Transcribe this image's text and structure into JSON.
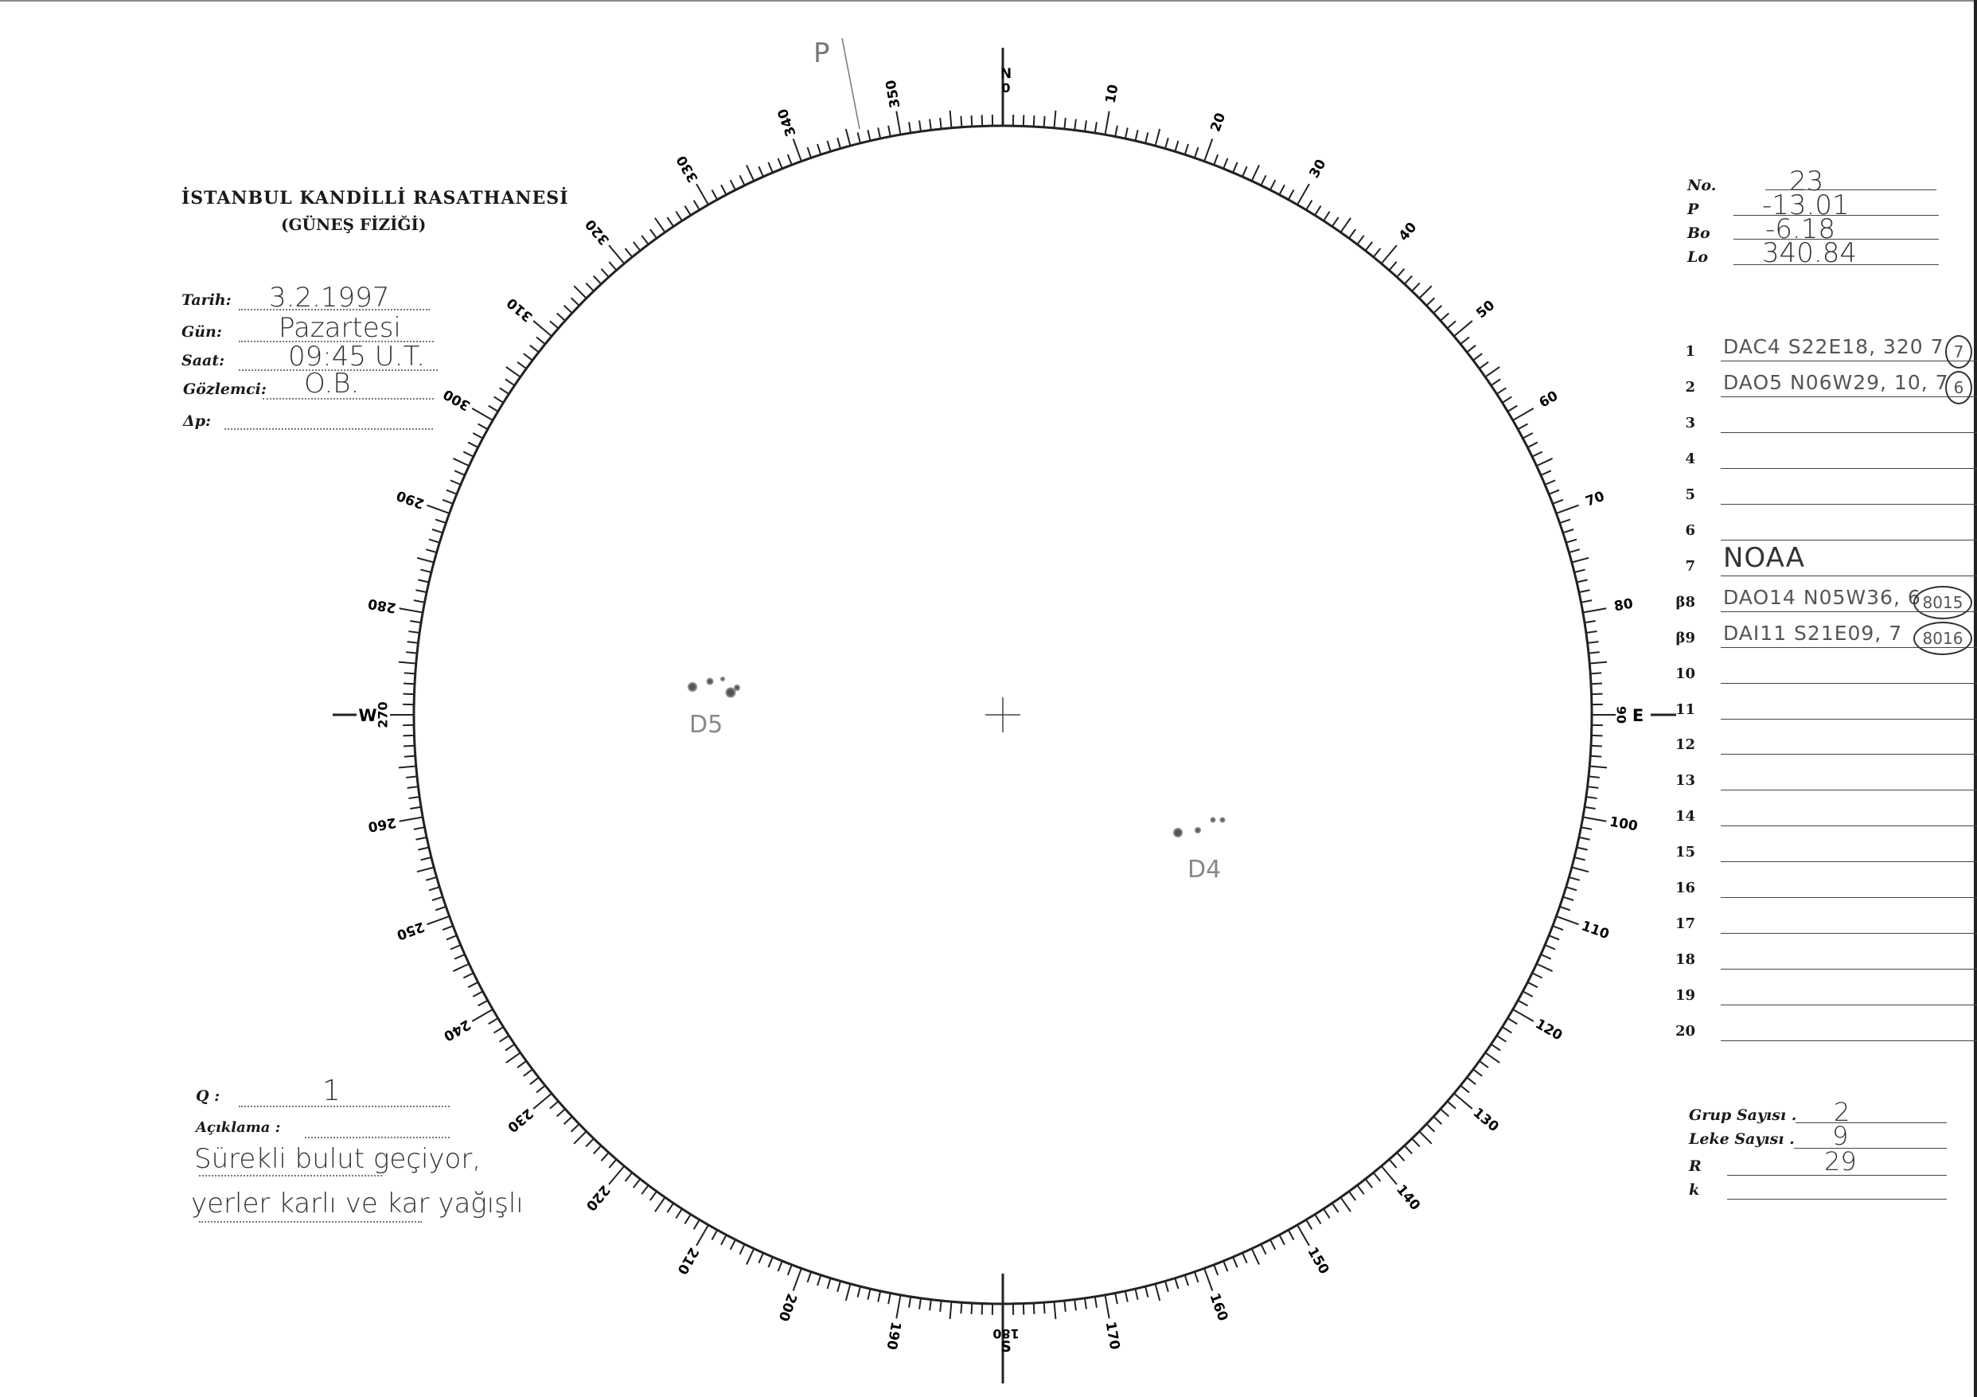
{
  "header": {
    "institution": "İSTANBUL KANDİLLİ RASATHANESİ",
    "department": "(GÜNEŞ FİZİĞİ)"
  },
  "observation": {
    "tarih_label": "Tarih:",
    "tarih": "3.2.1997",
    "gun_label": "Gün:",
    "gun": "Pazartesi",
    "saat_label": "Saat:",
    "saat": "09:45 U.T.",
    "gozlemci_label": "Gözlemci:",
    "gozlemci": "O.B.",
    "dp_label": "Δp:",
    "dp": ""
  },
  "quality": {
    "q_label": "Q :",
    "q": "1",
    "aciklama_label": "Açıklama :",
    "aciklama_lines": [
      "Sürekli bulut geçiyor,",
      "yerler karlı ve kar yağışlı"
    ]
  },
  "ephemeris": {
    "no_label": "No.",
    "no": "23",
    "p_label": "P",
    "p": "-13.01",
    "bo_label": "Bo",
    "bo": "-6.18",
    "lo_label": "Lo",
    "lo": "340.84"
  },
  "groups": [
    {
      "num": "1",
      "text": "DAC4 S22E18, 320 7",
      "circled": "7"
    },
    {
      "num": "2",
      "text": "DAO5 N06W29, 10, 7",
      "circled": "6"
    },
    {
      "num": "3",
      "text": "",
      "circled": ""
    },
    {
      "num": "4",
      "text": "",
      "circled": ""
    },
    {
      "num": "5",
      "text": "",
      "circled": ""
    },
    {
      "num": "6",
      "text": "",
      "circled": ""
    },
    {
      "num": "7",
      "text": "NOAA",
      "circled": ""
    },
    {
      "num": "β8",
      "text": "DAO14 N05W36, 6",
      "circled": "8015"
    },
    {
      "num": "β9",
      "text": "DAI11 S21E09, 7",
      "circled": "8016"
    },
    {
      "num": "10",
      "text": "",
      "circled": ""
    },
    {
      "num": "11",
      "text": "",
      "circled": ""
    },
    {
      "num": "12",
      "text": "",
      "circled": ""
    },
    {
      "num": "13",
      "text": "",
      "circled": ""
    },
    {
      "num": "14",
      "text": "",
      "circled": ""
    },
    {
      "num": "15",
      "text": "",
      "circled": ""
    },
    {
      "num": "16",
      "text": "",
      "circled": ""
    },
    {
      "num": "17",
      "text": "",
      "circled": ""
    },
    {
      "num": "18",
      "text": "",
      "circled": ""
    },
    {
      "num": "19",
      "text": "",
      "circled": ""
    },
    {
      "num": "20",
      "text": "",
      "circled": ""
    }
  ],
  "summary": {
    "grup_label": "Grup Sayısı .",
    "grup": "2",
    "leke_label": "Leke Sayısı .",
    "leke": "9",
    "r_label": "R",
    "r": "29",
    "k_label": "k",
    "k": ""
  },
  "disk": {
    "cardinals": {
      "north": "N",
      "south": "S",
      "east": "E",
      "west": "W"
    },
    "scale_labels": [
      "0",
      "10",
      "20",
      "30",
      "40",
      "50",
      "60",
      "70",
      "80",
      "90",
      "100",
      "110",
      "120",
      "130",
      "140",
      "150",
      "160",
      "170",
      "180",
      "190",
      "200",
      "210",
      "220",
      "230",
      "240",
      "250",
      "260",
      "270",
      "280",
      "290",
      "300",
      "310",
      "320",
      "330",
      "340",
      "350"
    ],
    "group_labels": [
      "D5",
      "D4"
    ],
    "p_mark": "P"
  }
}
